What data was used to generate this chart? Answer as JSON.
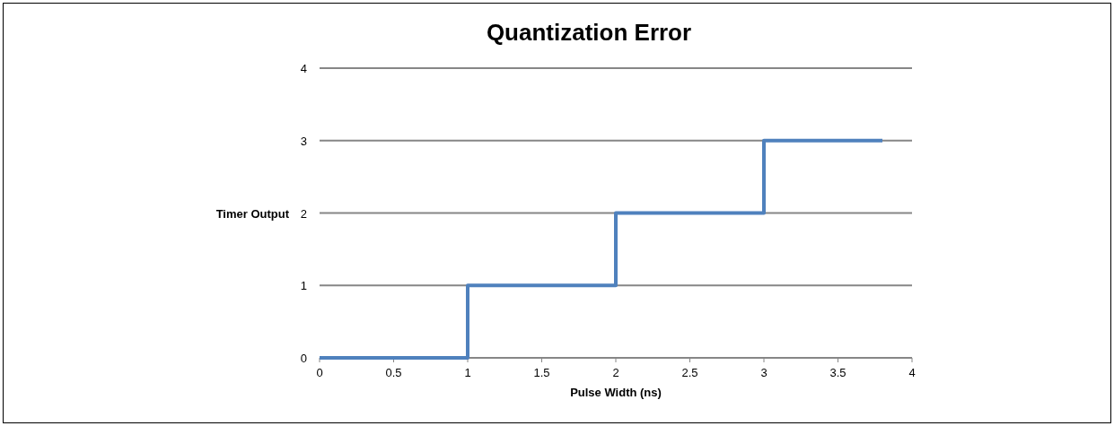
{
  "chart_data": {
    "type": "step",
    "title": "Quantization Error",
    "xlabel": "Pulse Width (ns)",
    "ylabel": "Timer Output",
    "x": [
      0,
      1,
      2,
      3,
      3.8
    ],
    "series": [
      {
        "color": "#4f81bd",
        "values": [
          0,
          1,
          2,
          3,
          3
        ]
      }
    ],
    "xlim": [
      0,
      4
    ],
    "xticks": [
      0,
      0.5,
      1,
      1.5,
      2,
      2.5,
      3,
      3.5,
      4
    ],
    "ylim": [
      0,
      4
    ],
    "yticks": [
      0,
      1,
      2,
      3,
      4
    ],
    "grid": "y"
  }
}
